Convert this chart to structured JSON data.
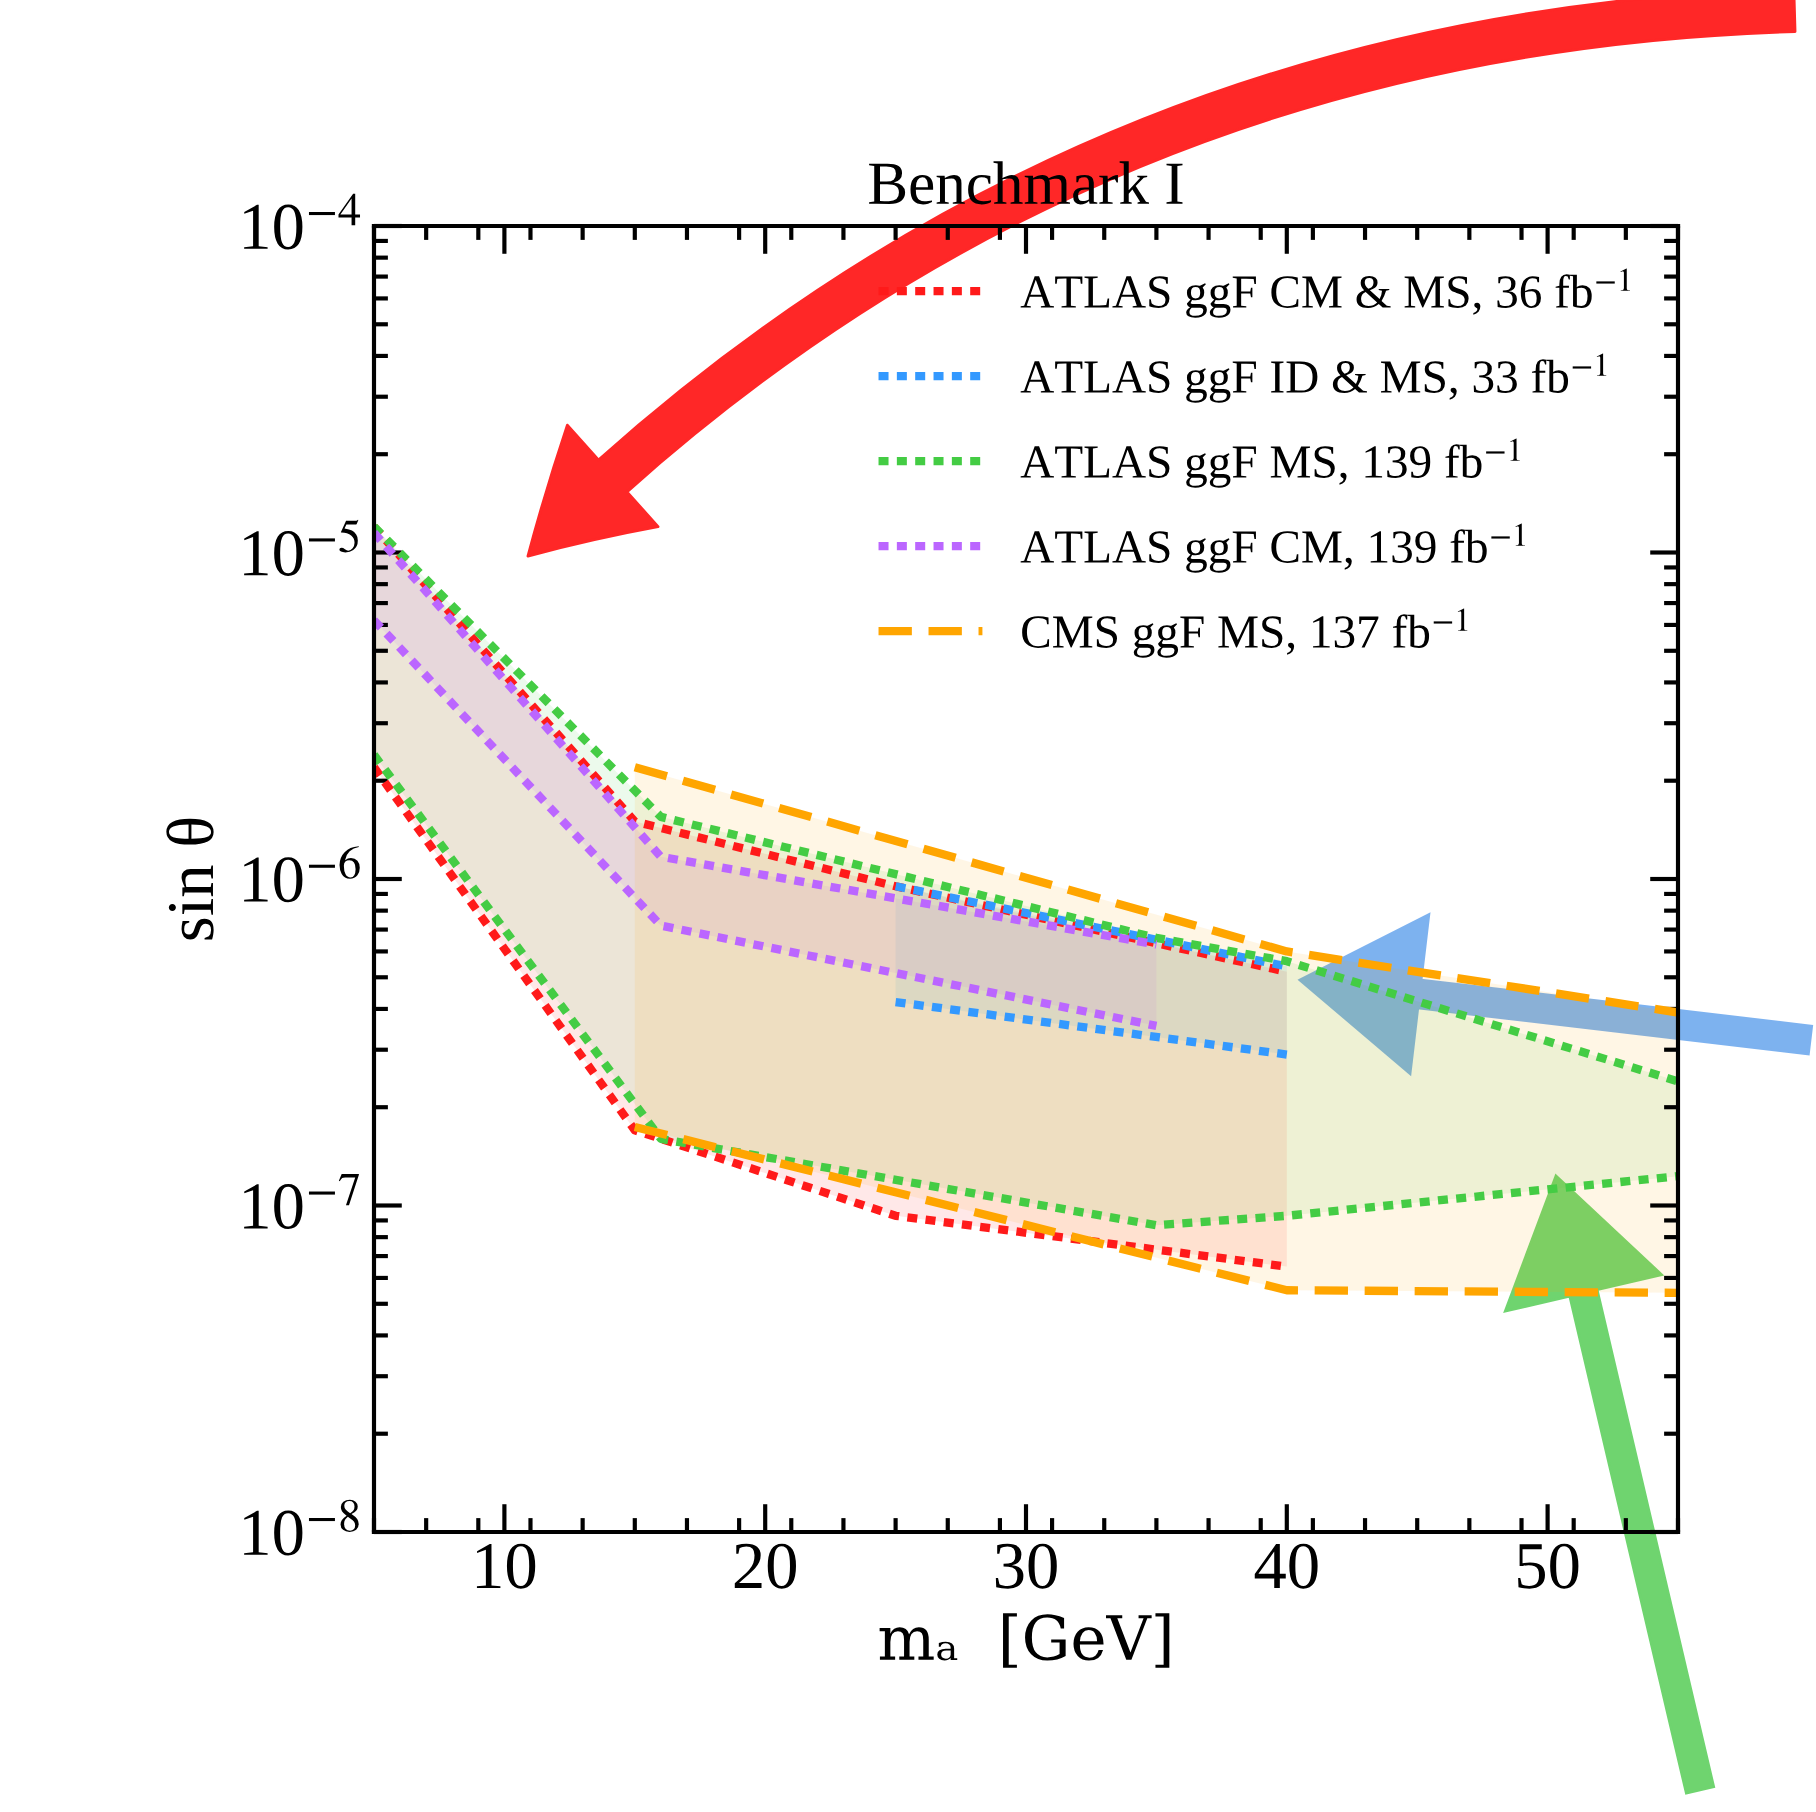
{
  "chart_data": {
    "type": "line",
    "title": "Benchmark I",
    "xlabel": "mₐ  [GeV]",
    "ylabel": "sin θ",
    "xlim": [
      5,
      55
    ],
    "xticks": [
      10,
      20,
      30,
      40,
      50
    ],
    "ylim": [
      1e-08,
      0.0001
    ],
    "log": "y",
    "yticks": [
      {
        "value": 1e-08,
        "label": "10$^{−8}$"
      },
      {
        "value": 1e-07,
        "label": "10$^{−7}$"
      },
      {
        "value": 1e-06,
        "label": "10$^{−6}$"
      },
      {
        "value": 1e-05,
        "label": "10$^{−5}$"
      },
      {
        "value": 0.0001,
        "label": "10$^{−4}$"
      }
    ],
    "grid": false,
    "legend": "top right",
    "marker": "none",
    "series": [
      {
        "name": "ATLAS ggF CM & MS, 36 fb$^{−1}$",
        "color": "#ff1a1a",
        "line_style": "dotted",
        "x": [
          5,
          15,
          25,
          40
        ],
        "values": [
          1.2e-05,
          1.5e-06,
          9.5e-07,
          5.2e-07
        ],
        "upper": [
          1.2e-05,
          1.5e-06,
          9.5e-07,
          5.2e-07
        ],
        "lower": [
          2.2e-06,
          1.7e-07,
          9.3e-08,
          6.5e-08
        ]
      },
      {
        "color": "#ff1a1a",
        "line_style": "dotted",
        "x": [
          5,
          15,
          25,
          40
        ],
        "values": [
          2.2e-06,
          1.7e-07,
          9.3e-08,
          6.5e-08
        ]
      },
      {
        "name": "ATLAS ggF ID & MS, 33 fb$^{−1}$",
        "color": "#3399ff",
        "line_style": "dotted",
        "x": [
          25,
          40
        ],
        "values": [
          9.5e-07,
          5.4e-07
        ],
        "upper": [
          9.5e-07,
          5.4e-07
        ],
        "lower": [
          4.2e-07,
          2.9e-07
        ]
      },
      {
        "color": "#3399ff",
        "line_style": "dotted",
        "x": [
          25,
          40
        ],
        "values": [
          4.2e-07,
          2.9e-07
        ]
      },
      {
        "name": "ATLAS ggF MS, 139 fb$^{−1}$",
        "color": "#44cc44",
        "line_style": "dotted",
        "x": [
          5,
          16,
          35,
          40,
          55
        ],
        "values": [
          1.2e-05,
          1.55e-06,
          6.6e-07,
          5.6e-07,
          2.4e-07
        ],
        "upper": [
          1.2e-05,
          1.55e-06,
          6.6e-07,
          5.6e-07,
          2.4e-07
        ],
        "lower": [
          2.4e-06,
          1.6e-07,
          8.7e-08,
          9.3e-08,
          1.23e-07
        ]
      },
      {
        "color": "#44cc44",
        "line_style": "dotted",
        "x": [
          5,
          16,
          35,
          40,
          55
        ],
        "values": [
          2.4e-06,
          1.6e-07,
          8.7e-08,
          9.3e-08,
          1.23e-07
        ]
      },
      {
        "name": "ATLAS ggF CM, 139 fb$^{−1}$",
        "color": "#bb66ff",
        "line_style": "dotted",
        "x": [
          5,
          16,
          35
        ],
        "values": [
          1.15e-05,
          1.17e-06,
          6.3e-07
        ],
        "upper": [
          1.15e-05,
          1.17e-06,
          6.3e-07
        ],
        "lower": [
          6.2e-06,
          7.2e-07,
          3.55e-07
        ]
      },
      {
        "color": "#bb66ff",
        "line_style": "dotted",
        "x": [
          5,
          16,
          35
        ],
        "values": [
          6.2e-06,
          7.2e-07,
          3.55e-07
        ]
      },
      {
        "name": "CMS ggF MS, 137 fb$^{−1}$",
        "color": "#ffa500",
        "line_style": "dashed",
        "x": [
          15,
          40,
          55
        ],
        "values": [
          2.2e-06,
          6e-07,
          3.9e-07
        ],
        "upper": [
          2.2e-06,
          6e-07,
          3.9e-07
        ],
        "lower": [
          1.74e-07,
          5.5e-08,
          5.4e-08
        ]
      },
      {
        "color": "#ffa500",
        "line_style": "dashed",
        "x": [
          15,
          40,
          55
        ],
        "values": [
          1.74e-07,
          5.5e-08,
          5.4e-08
        ]
      }
    ]
  }
}
